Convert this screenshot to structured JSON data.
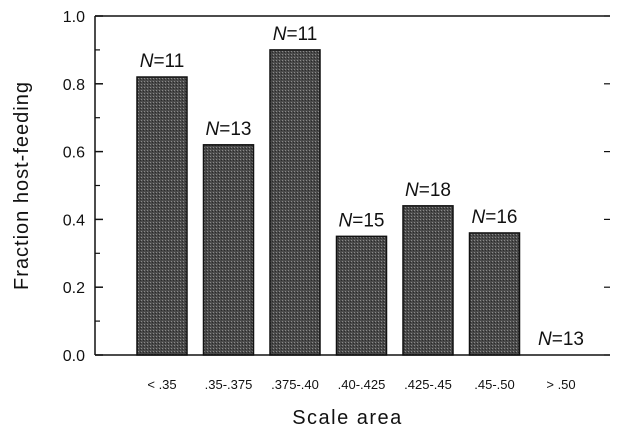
{
  "chart_data": {
    "type": "bar",
    "title": "",
    "xlabel": "Scale area",
    "ylabel": "Fraction host-feeding",
    "ylim": [
      0.0,
      1.0
    ],
    "yticks": [
      "0.0",
      "0.2",
      "0.4",
      "0.6",
      "0.8",
      "1.0"
    ],
    "categories": [
      "< .35",
      ".35-.375",
      ".375-.40",
      ".40-.425",
      ".425-.45",
      ".45-.50",
      "> .50"
    ],
    "values": [
      0.82,
      0.62,
      0.9,
      0.35,
      0.44,
      0.36,
      0.0
    ],
    "n_labels": [
      {
        "prefix": "N",
        "text": "=11"
      },
      {
        "prefix": "N",
        "text": "=13"
      },
      {
        "prefix": "N",
        "text": "=11"
      },
      {
        "prefix": "N",
        "text": "=15"
      },
      {
        "prefix": "N",
        "text": "=18"
      },
      {
        "prefix": "N",
        "text": "=16"
      },
      {
        "prefix": "N",
        "text": "=13"
      }
    ],
    "grid": false,
    "bar_color": "#4a4a4a"
  }
}
